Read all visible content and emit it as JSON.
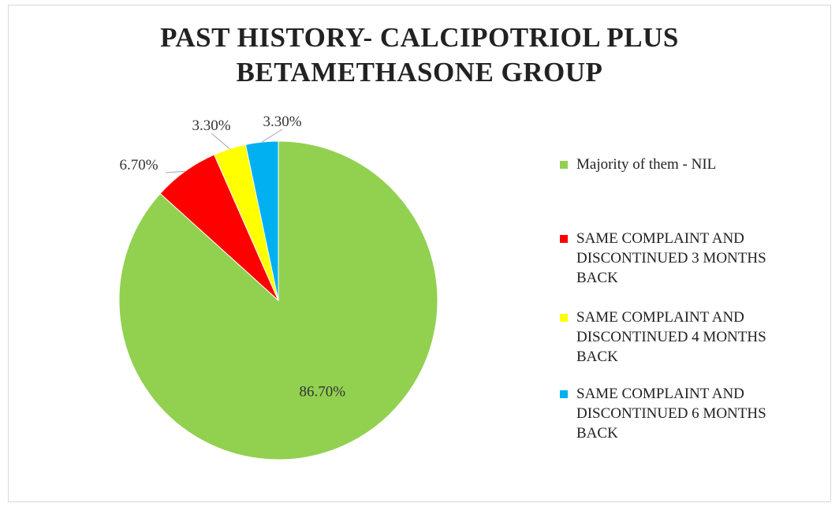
{
  "chart_data": {
    "type": "pie",
    "title_lines": [
      "PAST HISTORY- CALCIPOTRIOL PLUS",
      "BETAMETHASONE GROUP"
    ],
    "slices": [
      {
        "name": "Majority of them - NIL",
        "value": 86.7,
        "label": "86.70%",
        "color": "#92d050"
      },
      {
        "name": "SAME COMPLAINT AND\nDISCONTINUED 3 MONTHS\nBACK",
        "value": 6.7,
        "label": "6.70%",
        "color": "#ff0000"
      },
      {
        "name": "SAME COMPLAINT AND\nDISCONTINUED 4 MONTHS\nBACK",
        "value": 3.3,
        "label": "3.30%",
        "color": "#ffff00"
      },
      {
        "name": "SAME COMPLAINT AND\nDISCONTINUED 6 MONTHS\nBACK",
        "value": 3.3,
        "label": "3.30%",
        "color": "#00b0f0"
      }
    ],
    "legend_position": "right"
  }
}
